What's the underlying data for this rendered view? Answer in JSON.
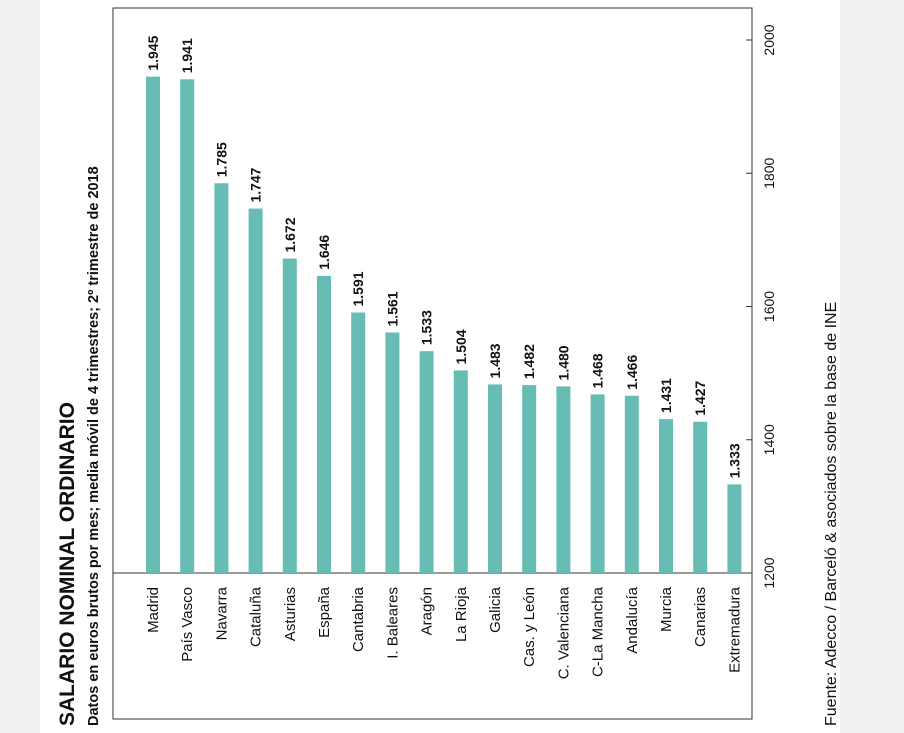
{
  "colors": {
    "bar": "#67bdb4",
    "frame": "#333333",
    "text": "#111111"
  },
  "chart_data": {
    "type": "bar",
    "orientation": "rotated",
    "title": "SALARIO NOMINAL ORDINARIO",
    "subtitle": "Datos en euros brutos por mes; media móvil de 4 trimestres; 2º trimestre de 2018",
    "source": "Fuente: Adecco / Barceló & asociados sobre la base de INE",
    "categories": [
      "Madrid",
      "País Vasco",
      "Navarra",
      "Cataluña",
      "Asturias",
      "España",
      "Cantabria",
      "I. Baleares",
      "Aragón",
      "La Rioja",
      "Galicia",
      "Cas. y León",
      "C. Valenciana",
      "C-La Mancha",
      "Andalucía",
      "Murcia",
      "Canarias",
      "Extremadura"
    ],
    "values": [
      1945,
      1941,
      1785,
      1747,
      1672,
      1646,
      1591,
      1561,
      1533,
      1504,
      1483,
      1482,
      1480,
      1468,
      1466,
      1431,
      1427,
      1333
    ],
    "value_labels": [
      "1.945",
      "1.941",
      "1.785",
      "1.747",
      "1.672",
      "1.646",
      "1.591",
      "1.561",
      "1.533",
      "1.504",
      "1.483",
      "1.482",
      "1.480",
      "1.468",
      "1.466",
      "1.431",
      "1.427",
      "1.333"
    ],
    "ylim": [
      1200,
      2000
    ],
    "yticks": [
      1200,
      1400,
      1600,
      1800,
      2000
    ],
    "ytick_labels": [
      "1200",
      "1400",
      "1600",
      "1800",
      "2000"
    ],
    "grid": false,
    "legend": "none"
  }
}
